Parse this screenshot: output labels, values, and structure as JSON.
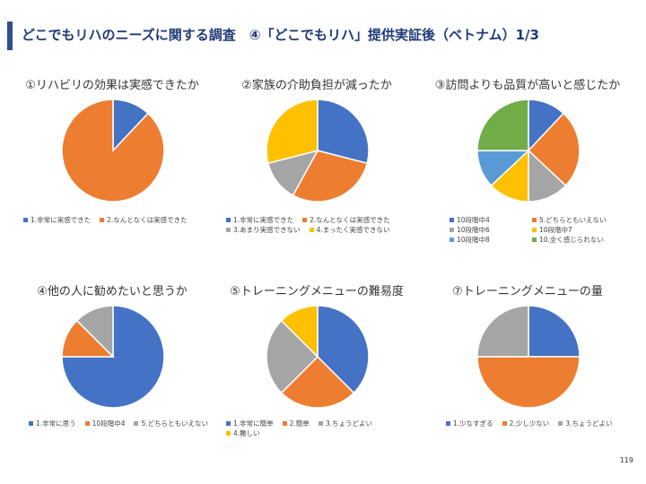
{
  "page": {
    "title": "どこでもリハのニーズに関する調査　④「どこでもリハ」提供実証後（ベトナム）1/3",
    "page_number": "119"
  },
  "colors": {
    "blue": "#4472C4",
    "orange": "#ED7D31",
    "gray": "#A5A5A5",
    "yellow": "#FFC000",
    "light_blue": "#5B9BD5",
    "green": "#70AD47"
  },
  "chart_data": [
    {
      "type": "pie",
      "title": "①リハビリの効果は実感できたか",
      "categories": [
        "1.非常に実感できた",
        "2.なんとなくは実感できた"
      ],
      "values": [
        12,
        88
      ],
      "colors": [
        "#4472C4",
        "#ED7D31"
      ]
    },
    {
      "type": "pie",
      "title": "②家族の介助負担が減ったか",
      "categories": [
        "1.非常に実感できた",
        "2.なんとなくは実感できた",
        "3.あまり実感できない",
        "4.まったく実感できない"
      ],
      "values": [
        29,
        29,
        13,
        29
      ],
      "colors": [
        "#4472C4",
        "#ED7D31",
        "#A5A5A5",
        "#FFC000"
      ]
    },
    {
      "type": "pie",
      "title": "③訪問よりも品質が高いと感じたか",
      "categories": [
        "10段階中4",
        "5.どちらともいえない",
        "10段階中6",
        "10段階中7",
        "10段階中8",
        "10.全く感じられない"
      ],
      "values": [
        12,
        25,
        13,
        13,
        12,
        25
      ],
      "colors": [
        "#4472C4",
        "#ED7D31",
        "#A5A5A5",
        "#FFC000",
        "#5B9BD5",
        "#70AD47"
      ]
    },
    {
      "type": "pie",
      "title": "④他の人に勧めたいと思うか",
      "categories": [
        "1.非常に思う",
        "10段階中4",
        "5.どちらともいえない"
      ],
      "values": [
        75,
        12.5,
        12.5
      ],
      "colors": [
        "#4472C4",
        "#ED7D31",
        "#A5A5A5"
      ]
    },
    {
      "type": "pie",
      "title": "⑤トレーニングメニューの難易度",
      "categories": [
        "1.非常に簡単",
        "2.簡単",
        "3.ちょうどよい",
        "4.難しい"
      ],
      "values": [
        37.5,
        25,
        25,
        12.5
      ],
      "colors": [
        "#4472C4",
        "#ED7D31",
        "#A5A5A5",
        "#FFC000"
      ]
    },
    {
      "type": "pie",
      "title": "⑦トレーニングメニューの量",
      "categories": [
        "1.少なすぎる",
        "2.少し少ない",
        "3.ちょうどよい"
      ],
      "values": [
        25,
        50,
        25
      ],
      "colors": [
        "#4472C4",
        "#ED7D31",
        "#A5A5A5"
      ]
    }
  ]
}
